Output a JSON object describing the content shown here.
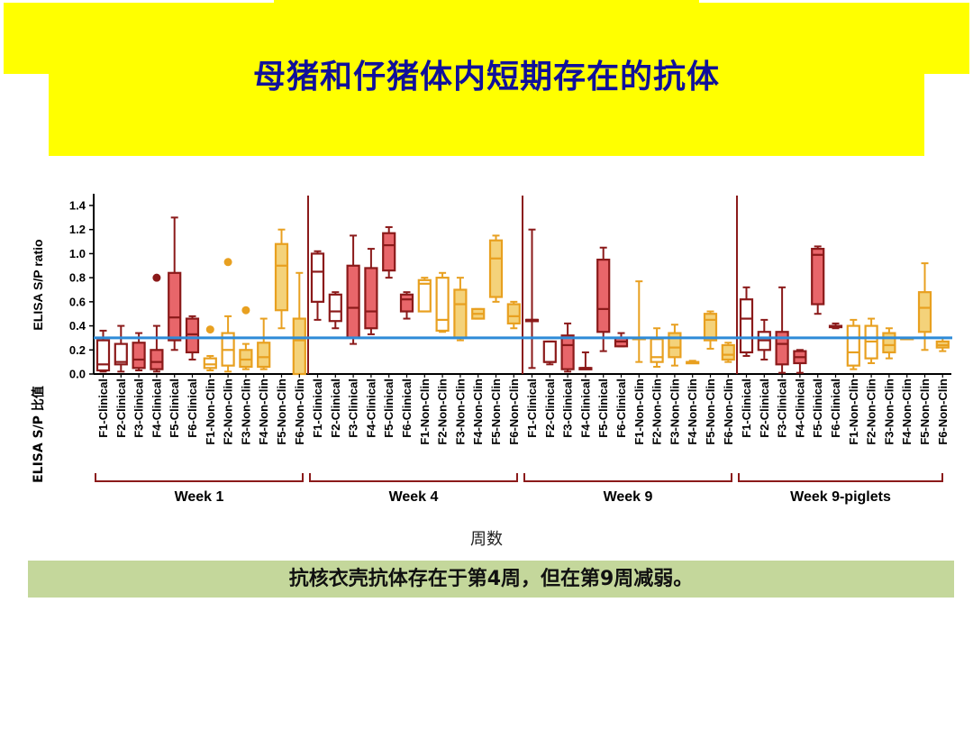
{
  "slide": {
    "title": "母猪和仔猪体内短期存在的抗体",
    "footer": "抗核衣壳抗体存在于第4周，但在第9周减弱。"
  },
  "colors": {
    "banner": "#ffff00",
    "footer_bg": "#c4d79b",
    "clinical_dark": "#8b1a1a",
    "clinical_fill": "#e8666a",
    "nonclinical_line": "#e8a020",
    "nonclinical_fill": "#f4d27a",
    "cutoff_line": "#2e8bd8",
    "outlier_dark": "#8b1a1a",
    "outlier_orange": "#e8a020"
  },
  "chart_data": {
    "type": "box",
    "ylabel": "ELISA S/P ratio",
    "ylabel_cn": "ELISA S/P 比值",
    "xlabel_cn": "周数",
    "ylim": [
      0,
      1.4
    ],
    "yticks": [
      "0.0",
      "0.2",
      "0.4",
      "0.6",
      "0.8",
      "1.0",
      "1.2",
      "1.4"
    ],
    "cutoff": 0.3,
    "categories": [
      "F1-Clinical",
      "F2-Clinical",
      "F3-Clinical",
      "F4-Clinical",
      "F5-Clinical",
      "F6-Clinical",
      "F1-Non-Clin",
      "F2-Non-Clin",
      "F3-Non-Clin",
      "F4-Non-Clin",
      "F5-Non-Clin",
      "F6-Non-Clin"
    ],
    "group_kind": [
      "clinical",
      "clinical",
      "clinical",
      "clinical",
      "clinical",
      "clinical",
      "non-clinical",
      "non-clinical",
      "non-clinical",
      "non-clinical",
      "non-clinical",
      "non-clinical"
    ],
    "fill": [
      "none",
      "none",
      "filled",
      "filled",
      "filled",
      "filled",
      "none",
      "none",
      "filled",
      "filled",
      "filled",
      "filled"
    ],
    "groups": [
      {
        "name": "Week 1",
        "boxes": [
          {
            "min": 0.02,
            "q1": 0.03,
            "median": 0.08,
            "q3": 0.28,
            "max": 0.36
          },
          {
            "min": 0.02,
            "q1": 0.08,
            "median": 0.1,
            "q3": 0.25,
            "max": 0.4
          },
          {
            "min": 0.03,
            "q1": 0.05,
            "median": 0.12,
            "q3": 0.26,
            "max": 0.34
          },
          {
            "min": 0.02,
            "q1": 0.04,
            "median": 0.1,
            "q3": 0.2,
            "max": 0.4,
            "outliers": [
              0.8
            ]
          },
          {
            "min": 0.2,
            "q1": 0.28,
            "median": 0.47,
            "q3": 0.84,
            "max": 1.3
          },
          {
            "min": 0.12,
            "q1": 0.18,
            "median": 0.33,
            "q3": 0.46,
            "max": 0.48
          },
          {
            "min": 0.03,
            "q1": 0.05,
            "median": 0.08,
            "q3": 0.13,
            "max": 0.15,
            "outliers": [
              0.37
            ]
          },
          {
            "min": 0.02,
            "q1": 0.07,
            "median": 0.2,
            "q3": 0.34,
            "max": 0.48,
            "outliers": [
              0.93
            ]
          },
          {
            "min": 0.04,
            "q1": 0.06,
            "median": 0.12,
            "q3": 0.2,
            "max": 0.25,
            "outliers": [
              0.53
            ]
          },
          {
            "min": 0.04,
            "q1": 0.06,
            "median": 0.14,
            "q3": 0.26,
            "max": 0.46
          },
          {
            "min": 0.38,
            "q1": 0.53,
            "median": 0.9,
            "q3": 1.08,
            "max": 1.2
          },
          {
            "min": 0.0,
            "q1": 0.0,
            "median": 0.28,
            "q3": 0.46,
            "max": 0.84
          }
        ]
      },
      {
        "name": "Week 4",
        "boxes": [
          {
            "min": 0.45,
            "q1": 0.6,
            "median": 0.85,
            "q3": 1.0,
            "max": 1.02
          },
          {
            "min": 0.38,
            "q1": 0.44,
            "median": 0.52,
            "q3": 0.66,
            "max": 0.68
          },
          {
            "min": 0.25,
            "q1": 0.3,
            "median": 0.55,
            "q3": 0.9,
            "max": 1.15
          },
          {
            "min": 0.33,
            "q1": 0.38,
            "median": 0.52,
            "q3": 0.88,
            "max": 1.04
          },
          {
            "min": 0.8,
            "q1": 0.86,
            "median": 1.07,
            "q3": 1.17,
            "max": 1.22
          },
          {
            "min": 0.46,
            "q1": 0.52,
            "median": 0.62,
            "q3": 0.66,
            "max": 0.68
          },
          {
            "min": 0.52,
            "q1": 0.52,
            "median": 0.75,
            "q3": 0.78,
            "max": 0.8
          },
          {
            "min": 0.35,
            "q1": 0.36,
            "median": 0.45,
            "q3": 0.8,
            "max": 0.84
          },
          {
            "min": 0.28,
            "q1": 0.3,
            "median": 0.58,
            "q3": 0.7,
            "max": 0.8
          },
          {
            "min": 0.46,
            "q1": 0.46,
            "median": 0.5,
            "q3": 0.54,
            "max": 0.54
          },
          {
            "min": 0.6,
            "q1": 0.64,
            "median": 0.96,
            "q3": 1.11,
            "max": 1.15
          },
          {
            "min": 0.38,
            "q1": 0.42,
            "median": 0.48,
            "q3": 0.58,
            "max": 0.6
          }
        ]
      },
      {
        "name": "Week 9",
        "boxes": [
          {
            "min": 0.05,
            "q1": 0.45,
            "median": 0.45,
            "q3": 0.45,
            "max": 1.2
          },
          {
            "min": 0.08,
            "q1": 0.1,
            "median": 0.1,
            "q3": 0.27,
            "max": 0.27
          },
          {
            "min": 0.02,
            "q1": 0.04,
            "median": 0.24,
            "q3": 0.32,
            "max": 0.42
          },
          {
            "min": 0.05,
            "q1": 0.05,
            "median": 0.05,
            "q3": 0.05,
            "max": 0.18
          },
          {
            "min": 0.19,
            "q1": 0.35,
            "median": 0.54,
            "q3": 0.95,
            "max": 1.05
          },
          {
            "min": 0.23,
            "q1": 0.23,
            "median": 0.27,
            "q3": 0.3,
            "max": 0.34
          },
          {
            "min": 0.1,
            "q1": 0.3,
            "median": 0.3,
            "q3": 0.3,
            "max": 0.77
          },
          {
            "min": 0.06,
            "q1": 0.1,
            "median": 0.14,
            "q3": 0.29,
            "max": 0.38
          },
          {
            "min": 0.07,
            "q1": 0.14,
            "median": 0.22,
            "q3": 0.34,
            "max": 0.41
          },
          {
            "min": 0.09,
            "q1": 0.1,
            "median": 0.1,
            "q3": 0.1,
            "max": 0.11
          },
          {
            "min": 0.21,
            "q1": 0.28,
            "median": 0.45,
            "q3": 0.5,
            "max": 0.52
          },
          {
            "min": 0.1,
            "q1": 0.12,
            "median": 0.16,
            "q3": 0.24,
            "max": 0.26
          }
        ]
      },
      {
        "name": "Week 9-piglets",
        "boxes": [
          {
            "min": 0.15,
            "q1": 0.18,
            "median": 0.46,
            "q3": 0.62,
            "max": 0.72
          },
          {
            "min": 0.12,
            "q1": 0.2,
            "median": 0.28,
            "q3": 0.35,
            "max": 0.45
          },
          {
            "min": 0.01,
            "q1": 0.08,
            "median": 0.25,
            "q3": 0.35,
            "max": 0.72
          },
          {
            "min": 0.01,
            "q1": 0.09,
            "median": 0.14,
            "q3": 0.19,
            "max": 0.2
          },
          {
            "min": 0.5,
            "q1": 0.58,
            "median": 0.99,
            "q3": 1.04,
            "max": 1.06
          },
          {
            "min": 0.38,
            "q1": 0.39,
            "median": 0.39,
            "q3": 0.4,
            "max": 0.42
          },
          {
            "min": 0.04,
            "q1": 0.07,
            "median": 0.18,
            "q3": 0.4,
            "max": 0.45
          },
          {
            "min": 0.09,
            "q1": 0.13,
            "median": 0.27,
            "q3": 0.4,
            "max": 0.46
          },
          {
            "min": 0.13,
            "q1": 0.18,
            "median": 0.24,
            "q3": 0.34,
            "max": 0.38
          },
          {
            "min": 0.3,
            "q1": 0.3,
            "median": 0.3,
            "q3": 0.3,
            "max": 0.3
          },
          {
            "min": 0.2,
            "q1": 0.35,
            "median": 0.55,
            "q3": 0.68,
            "max": 0.92
          },
          {
            "min": 0.19,
            "q1": 0.22,
            "median": 0.24,
            "q3": 0.27,
            "max": 0.3
          }
        ]
      }
    ]
  }
}
